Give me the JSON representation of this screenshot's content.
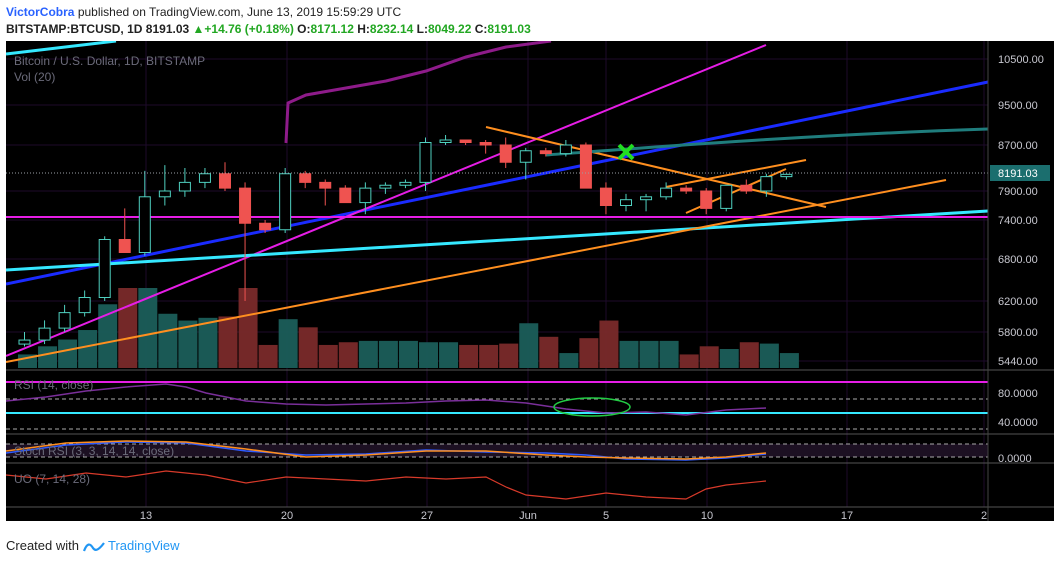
{
  "header": {
    "author": "VictorCobra",
    "published": "published on TradingView.com, June 13, 2019 15:59:29 UTC",
    "symbol": "BITSTAMP:BTCUSD, 1D",
    "price": "8191.03",
    "change": "+14.76 (+0.18%)",
    "o_label": "O:",
    "o_value": "8171.12",
    "h_label": "H:",
    "h_value": "8232.14",
    "l_label": "L:",
    "l_value": "8049.22",
    "c_label": "C:",
    "c_value": "8191.03"
  },
  "chart_title": "Bitcoin / U.S. Dollar, 1D, BITSTAMP",
  "vol_label": "Vol (20)",
  "price_label": "8191.03",
  "indicators": {
    "rsi": "RSI (14, close)",
    "stoch": "Stoch RSI (3, 3, 14, 14, close)",
    "uo": "UO (7, 14, 28)"
  },
  "footer": {
    "created": "Created with",
    "brand": "TradingView"
  },
  "colors": {
    "up": "#26a69a",
    "down": "#ef5350",
    "bg": "#000000",
    "grid": "#1e0a2a"
  },
  "chart_data": {
    "type": "candlestick",
    "title": "Bitcoin / U.S. Dollar, 1D, BITSTAMP",
    "price_ticks": [
      10500,
      9500,
      8700,
      7900,
      7400,
      6800,
      6200,
      5800,
      5440
    ],
    "price_tick_labels": [
      "10500.00",
      "9500.00",
      "8700.00",
      "7900.00",
      "7400.00",
      "6800.00",
      "6200.00",
      "5800.00",
      "5440.00"
    ],
    "rsi_ticks": [
      "80.0000",
      "40.0000"
    ],
    "stoch_ticks": [
      "0.0000"
    ],
    "x_tick_labels": [
      "13",
      "20",
      "27",
      "Jun",
      "5",
      "10",
      "17",
      "2"
    ],
    "candles": [
      {
        "o": 5650,
        "h": 5800,
        "l": 5620,
        "c": 5700
      },
      {
        "o": 5700,
        "h": 5950,
        "l": 5650,
        "c": 5850
      },
      {
        "o": 5850,
        "h": 6150,
        "l": 5800,
        "c": 6050
      },
      {
        "o": 6050,
        "h": 6350,
        "l": 6000,
        "c": 6250
      },
      {
        "o": 6250,
        "h": 7150,
        "l": 6200,
        "c": 7100
      },
      {
        "o": 7100,
        "h": 7600,
        "l": 6900,
        "c": 6900
      },
      {
        "o": 6900,
        "h": 8250,
        "l": 6850,
        "c": 7800
      },
      {
        "o": 7800,
        "h": 8350,
        "l": 7650,
        "c": 7900
      },
      {
        "o": 7900,
        "h": 8300,
        "l": 7800,
        "c": 8050
      },
      {
        "o": 8050,
        "h": 8300,
        "l": 7950,
        "c": 8200
      },
      {
        "o": 8200,
        "h": 8400,
        "l": 7900,
        "c": 7950
      },
      {
        "o": 7950,
        "h": 8050,
        "l": 6200,
        "c": 7350
      },
      {
        "o": 7350,
        "h": 7400,
        "l": 7200,
        "c": 7250
      },
      {
        "o": 7250,
        "h": 8300,
        "l": 7200,
        "c": 8200
      },
      {
        "o": 8200,
        "h": 8250,
        "l": 7950,
        "c": 8050
      },
      {
        "o": 8050,
        "h": 8100,
        "l": 7650,
        "c": 7950
      },
      {
        "o": 7950,
        "h": 8000,
        "l": 7700,
        "c": 7700
      },
      {
        "o": 7700,
        "h": 8050,
        "l": 7500,
        "c": 7950
      },
      {
        "o": 7950,
        "h": 8050,
        "l": 7850,
        "c": 8000
      },
      {
        "o": 8000,
        "h": 8100,
        "l": 7950,
        "c": 8050
      },
      {
        "o": 8050,
        "h": 8850,
        "l": 7900,
        "c": 8750
      },
      {
        "o": 8750,
        "h": 8900,
        "l": 8700,
        "c": 8800
      },
      {
        "o": 8800,
        "h": 8800,
        "l": 8700,
        "c": 8750
      },
      {
        "o": 8750,
        "h": 8800,
        "l": 8550,
        "c": 8700
      },
      {
        "o": 8700,
        "h": 8850,
        "l": 8300,
        "c": 8400
      },
      {
        "o": 8400,
        "h": 8650,
        "l": 8100,
        "c": 8600
      },
      {
        "o": 8600,
        "h": 8650,
        "l": 8500,
        "c": 8550
      },
      {
        "o": 8550,
        "h": 8800,
        "l": 8500,
        "c": 8700
      },
      {
        "o": 8700,
        "h": 8750,
        "l": 7950,
        "c": 7950
      },
      {
        "o": 7950,
        "h": 8050,
        "l": 7500,
        "c": 7650
      },
      {
        "o": 7650,
        "h": 7850,
        "l": 7550,
        "c": 7750
      },
      {
        "o": 7750,
        "h": 7850,
        "l": 7550,
        "c": 7800
      },
      {
        "o": 7800,
        "h": 8050,
        "l": 7750,
        "c": 7950
      },
      {
        "o": 7950,
        "h": 8000,
        "l": 7850,
        "c": 7900
      },
      {
        "o": 7900,
        "h": 7950,
        "l": 7500,
        "c": 7600
      },
      {
        "o": 7600,
        "h": 8000,
        "l": 7550,
        "c": 8000
      },
      {
        "o": 8000,
        "h": 8100,
        "l": 7850,
        "c": 7900
      },
      {
        "o": 7900,
        "h": 8200,
        "l": 7800,
        "c": 8150
      },
      {
        "o": 8150,
        "h": 8200,
        "l": 8100,
        "c": 8190
      }
    ],
    "volume": [
      10,
      16,
      21,
      28,
      47,
      59,
      59,
      40,
      35,
      37,
      38,
      59,
      17,
      36,
      30,
      17,
      19,
      20,
      20,
      20,
      19,
      19,
      17,
      17,
      18,
      33,
      23,
      11,
      22,
      35,
      20,
      20,
      20,
      10,
      16,
      14,
      19,
      18,
      11
    ]
  }
}
